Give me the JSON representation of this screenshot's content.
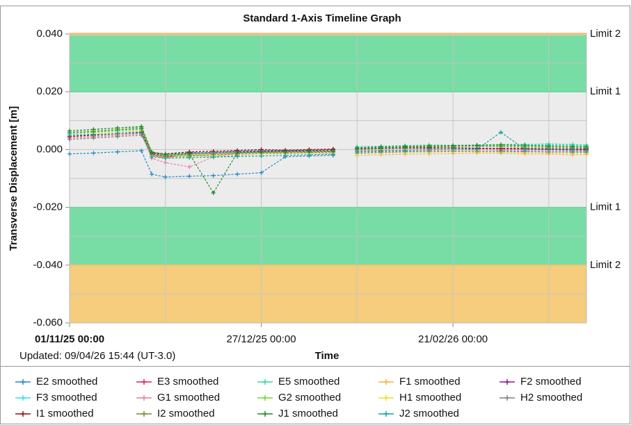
{
  "chart_data": {
    "type": "line",
    "title": "Standard 1-Axis Timeline Graph",
    "y_label": "Transverse Displacement [m]",
    "x_label": "Time",
    "updated": "Updated: 09/04/26 15:44 (UT-3.0)",
    "xlim": [
      "2025-11-01",
      "2026-04-01"
    ],
    "xticks": [
      {
        "value": "2025-11-01",
        "label": "01/11/25 00:00"
      },
      {
        "value": "2025-12-27",
        "label": "27/12/25 00:00"
      },
      {
        "value": "2026-02-21",
        "label": "21/02/26 00:00"
      }
    ],
    "xminor": [
      "2025-11-29",
      "2026-01-24",
      "2026-03-21"
    ],
    "ylim": [
      -0.06,
      0.04
    ],
    "yticks": [
      {
        "value": 0.04,
        "label": "0.040"
      },
      {
        "value": 0.02,
        "label": "0.020"
      },
      {
        "value": 0,
        "label": "0.000"
      },
      {
        "value": -0.02,
        "label": "-0.020"
      },
      {
        "value": -0.04,
        "label": "-0.040"
      },
      {
        "value": -0.06,
        "label": "-0.060"
      }
    ],
    "yminor": [
      0.03,
      0.01,
      -0.01,
      -0.03,
      -0.05
    ],
    "grid": true,
    "plot_background": "#ececec",
    "bands": [
      {
        "from": 0.02,
        "to": 0.04,
        "color": "#78dca5"
      },
      {
        "from": -0.04,
        "to": -0.02,
        "color": "#78dca5"
      },
      {
        "from": -0.06,
        "to": -0.04,
        "color": "#f5cd7c"
      }
    ],
    "limits": [
      {
        "label": "Limit 2",
        "value": 0.04,
        "color": "#f5cd7c"
      },
      {
        "label": "Limit 1",
        "value": 0.02,
        "color": "#6fd39c"
      },
      {
        "label": "Limit 1",
        "value": -0.02,
        "color": "#6fd39c"
      },
      {
        "label": "Limit 2",
        "value": -0.04,
        "color": "#f0c46c"
      }
    ],
    "x": [
      "2025-11-01",
      "2025-11-08",
      "2025-11-15",
      "2025-11-22",
      "2025-11-25",
      "2025-11-29",
      "2025-12-06",
      "2025-12-13",
      "2025-12-20",
      "2025-12-27",
      "2026-01-03",
      "2026-01-10",
      "2026-01-17",
      "2026-01-21",
      "2026-01-24",
      "2026-01-31",
      "2026-02-07",
      "2026-02-14",
      "2026-02-21",
      "2026-02-28",
      "2026-03-07",
      "2026-03-14",
      "2026-03-21",
      "2026-03-28",
      "2026-04-01"
    ],
    "series": [
      {
        "name": "E2 smoothed",
        "color": "#1e88c8",
        "values": [
          -0.0015,
          -0.0012,
          -0.0008,
          -0.0004,
          -0.0085,
          -0.0095,
          -0.0092,
          -0.009,
          -0.0085,
          -0.008,
          -0.0025,
          -0.0022,
          -0.002,
          null,
          -0.0012,
          -0.001,
          -0.0008,
          -0.0008,
          -0.0006,
          -0.0006,
          -0.0004,
          -0.0006,
          -0.0008,
          -0.0008,
          -0.0008
        ]
      },
      {
        "name": "E3 smoothed",
        "color": "#d6245a",
        "values": [
          0.004,
          0.0045,
          0.005,
          0.0055,
          -0.002,
          -0.003,
          -0.001,
          -0.0012,
          -0.0008,
          -0.0005,
          -0.0005,
          -0.0003,
          -0.0002,
          null,
          0.0002,
          0.0004,
          0.0005,
          0.0004,
          0.0005,
          0.0004,
          0.0003,
          0.0002,
          0,
          -0.0002,
          -0.0002
        ]
      },
      {
        "name": "E5 smoothed",
        "color": "#3fd6a0",
        "values": [
          0.006,
          0.0065,
          0.007,
          0.0075,
          -0.001,
          -0.0015,
          -0.0012,
          -0.001,
          -0.0008,
          -0.0006,
          -0.0006,
          -0.0005,
          -0.0006,
          null,
          0.001,
          0.0012,
          0.0014,
          0.0016,
          0.0015,
          0.0016,
          0.0018,
          0.0018,
          0.002,
          0.0018,
          0.0016
        ]
      },
      {
        "name": "F1 smoothed",
        "color": "#f5b342",
        "values": [
          0.005,
          0.0055,
          0.006,
          0.0065,
          -0.0012,
          -0.0022,
          -0.002,
          -0.0015,
          -0.0012,
          -0.001,
          -0.001,
          -0.0012,
          -0.0015,
          null,
          -0.002,
          -0.0018,
          -0.0016,
          -0.0015,
          -0.0014,
          -0.0012,
          -0.0013,
          -0.0015,
          -0.0016,
          -0.0018,
          -0.0017
        ]
      },
      {
        "name": "F2 smoothed",
        "color": "#8b1a8b",
        "values": [
          0.0045,
          0.005,
          0.0055,
          0.006,
          -0.0015,
          -0.0025,
          -0.0012,
          -0.001,
          -0.0006,
          -0.0004,
          -0.0003,
          -0.0002,
          0,
          null,
          0.0003,
          0.0004,
          0.0006,
          0.0005,
          0.0006,
          0.0005,
          0.0004,
          0.0004,
          0.0003,
          0.0002,
          0.0002
        ]
      },
      {
        "name": "F3 smoothed",
        "color": "#33e0f0",
        "values": [
          0.0055,
          0.006,
          0.0065,
          0.007,
          -0.001,
          -0.0018,
          -0.0015,
          -0.0012,
          -0.001,
          -0.0008,
          -0.0008,
          -0.0006,
          -0.0005,
          null,
          0.0008,
          0.001,
          0.0011,
          0.0012,
          0.0013,
          0.0014,
          0.0015,
          0.0016,
          0.0016,
          0.0015,
          0.0014
        ]
      },
      {
        "name": "G1 smoothed",
        "color": "#f07ab0",
        "values": [
          0.004,
          0.0045,
          0.005,
          0.0055,
          -0.003,
          -0.0045,
          -0.006,
          -0.0025,
          -0.002,
          -0.0015,
          -0.0012,
          -0.001,
          -0.0008,
          null,
          -0.0005,
          -0.0004,
          -0.0002,
          -0.0002,
          0,
          0.0001,
          0,
          -0.0002,
          -0.0003,
          -0.0004,
          -0.0004
        ]
      },
      {
        "name": "G2 smoothed",
        "color": "#7ad630",
        "values": [
          0.006,
          0.0065,
          0.007,
          0.0078,
          -0.001,
          -0.002,
          -0.0018,
          -0.0025,
          -0.0012,
          -0.001,
          -0.0008,
          -0.0006,
          -0.0004,
          null,
          0,
          0.0003,
          0.0006,
          0.0008,
          0.001,
          0.0012,
          0.0014,
          0.0012,
          0.001,
          0.0008,
          0.0008
        ]
      },
      {
        "name": "H1 smoothed",
        "color": "#e8e020",
        "values": [
          0.005,
          0.0055,
          0.006,
          0.0062,
          -0.002,
          -0.0028,
          -0.0025,
          -0.002,
          -0.0018,
          -0.0015,
          -0.0014,
          -0.0012,
          -0.001,
          null,
          -0.0015,
          -0.0012,
          -0.001,
          -0.0009,
          -0.0008,
          -0.0008,
          -0.0009,
          -0.001,
          -0.0012,
          -0.0013,
          -0.0013
        ]
      },
      {
        "name": "H2 smoothed",
        "color": "#808080",
        "values": [
          0.0035,
          0.004,
          0.0045,
          0.005,
          -0.0018,
          -0.0025,
          -0.0022,
          -0.0018,
          -0.0015,
          -0.0012,
          -0.0012,
          -0.001,
          -0.0009,
          null,
          -0.0008,
          -0.0007,
          -0.0006,
          -0.0006,
          -0.0005,
          -0.0005,
          -0.0006,
          -0.0007,
          -0.0008,
          -0.0009,
          -0.0009
        ]
      },
      {
        "name": "I1 smoothed",
        "color": "#8b1010",
        "values": [
          0.0045,
          0.005,
          0.0055,
          0.006,
          -0.0012,
          -0.0015,
          -0.0008,
          -0.0006,
          -0.0003,
          0,
          -0.0002,
          0,
          0.0002,
          null,
          0.0002,
          0.0004,
          0.0005,
          0.0006,
          0.0005,
          0.0004,
          0.0004,
          0.0003,
          0.0002,
          0.0001,
          0
        ]
      },
      {
        "name": "I2 smoothed",
        "color": "#7a8a2a",
        "values": [
          0.0058,
          0.0062,
          0.0068,
          0.0072,
          -0.0014,
          -0.002,
          -0.0016,
          -0.0014,
          -0.0011,
          -0.0009,
          -0.0008,
          -0.0007,
          -0.0006,
          null,
          0.0004,
          0.0006,
          0.0008,
          0.001,
          0.0011,
          0.0012,
          0.001,
          0.0009,
          0.0008,
          0.0006,
          0.0005
        ]
      },
      {
        "name": "J1 smoothed",
        "color": "#1a8a2a",
        "values": [
          0.0065,
          0.007,
          0.0075,
          0.008,
          -0.0008,
          -0.0016,
          -0.0014,
          -0.015,
          -0.001,
          -0.0008,
          -0.0007,
          -0.0006,
          -0.0005,
          null,
          0.0006,
          0.0009,
          0.0011,
          0.0013,
          0.0014,
          0.0015,
          0.0016,
          0.0015,
          0.0013,
          0.0011,
          0.001
        ]
      },
      {
        "name": "J2 smoothed",
        "color": "#1aa0a0",
        "values": [
          0.005,
          0.0052,
          0.0055,
          0.0058,
          -0.0025,
          -0.003,
          -0.0028,
          -0.0026,
          -0.0024,
          -0.0022,
          -0.002,
          -0.0018,
          -0.0016,
          null,
          -0.0004,
          -0.0003,
          -0.0002,
          -0.0001,
          0,
          0.0001,
          0.006,
          0.0001,
          0,
          -0.0001,
          -0.0002
        ]
      }
    ]
  }
}
